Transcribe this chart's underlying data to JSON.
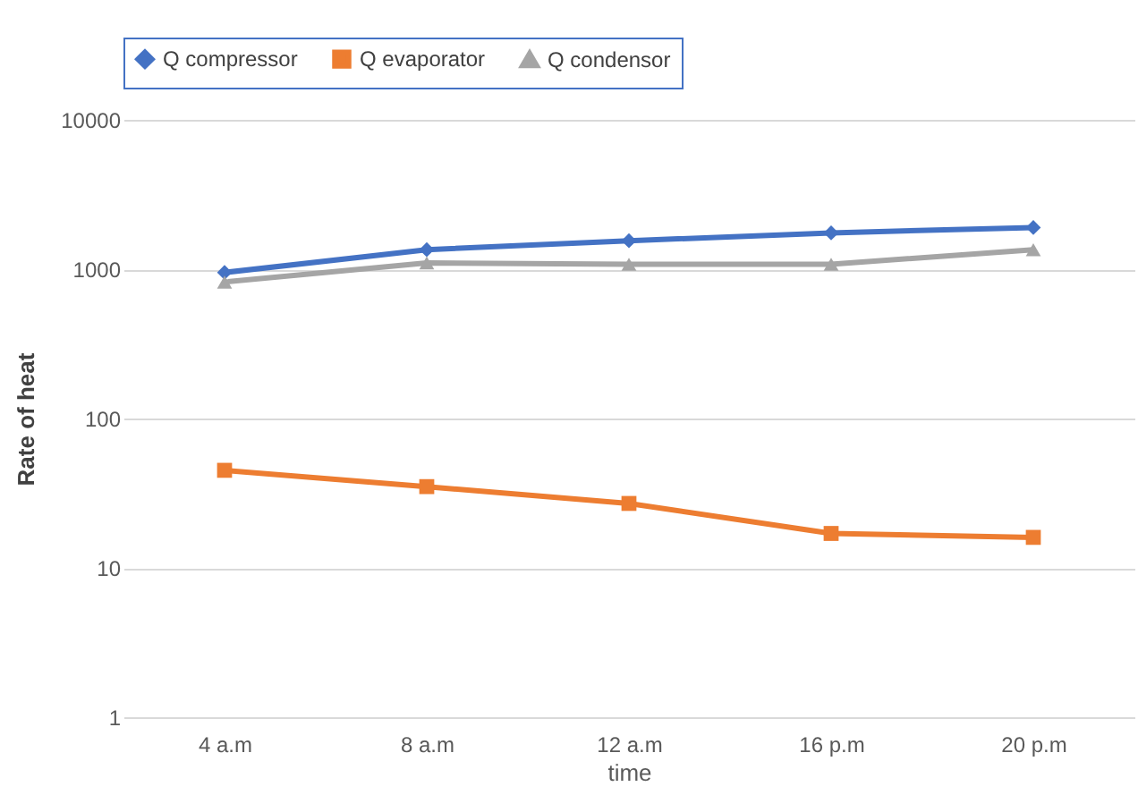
{
  "chart_data": {
    "type": "line",
    "xlabel": "time",
    "ylabel": "Rate of heat",
    "categories": [
      "4 a.m",
      "8 a.m",
      "12 a.m",
      "16 p.m",
      "20 p.m"
    ],
    "series": [
      {
        "name": "Q compressor",
        "color": "#4472c4",
        "marker": "diamond",
        "values": [
          950,
          1350,
          1550,
          1750,
          1900
        ]
      },
      {
        "name": "Q evaporator",
        "color": "#ed7d31",
        "marker": "square",
        "values": [
          45,
          35,
          27,
          17,
          16
        ]
      },
      {
        "name": "Q condensor",
        "color": "#a5a5a5",
        "marker": "triangle",
        "values": [
          820,
          1100,
          1080,
          1080,
          1350
        ]
      }
    ],
    "log": "y",
    "ylim": [
      1,
      10000
    ],
    "yticks": [
      1,
      10,
      100,
      1000,
      10000
    ],
    "grid": "y",
    "legend": "top",
    "line_style": "solid"
  }
}
